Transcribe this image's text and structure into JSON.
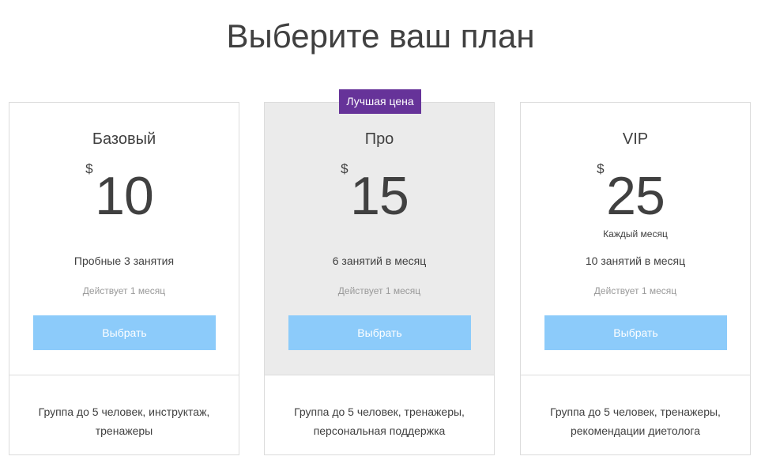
{
  "page": {
    "title": "Выберите ваш план"
  },
  "colors": {
    "accent_button": "#8ccbfa",
    "badge": "#663399",
    "featured_bg": "#ebebeb"
  },
  "plans": [
    {
      "name": "Базовый",
      "currency": "$",
      "amount": "10",
      "period": "",
      "sessions": "Пробные 3 занятия",
      "validity": "Действует 1 месяц",
      "button_label": "Выбрать",
      "features": "Группа до 5 человек, инструктаж, тренажеры"
    },
    {
      "name": "Про",
      "badge": "Лучшая цена",
      "currency": "$",
      "amount": "15",
      "period": "",
      "sessions": "6 занятий в месяц",
      "validity": "Действует 1 месяц",
      "button_label": "Выбрать",
      "features": "Группа до 5 человек, тренажеры, персональная поддержка"
    },
    {
      "name": "VIP",
      "currency": "$",
      "amount": "25",
      "period": "Каждый месяц",
      "sessions": "10 занятий в месяц",
      "validity": "Действует 1 месяц",
      "button_label": "Выбрать",
      "features": "Группа до 5 человек, тренажеры, рекомендации диетолога"
    }
  ]
}
